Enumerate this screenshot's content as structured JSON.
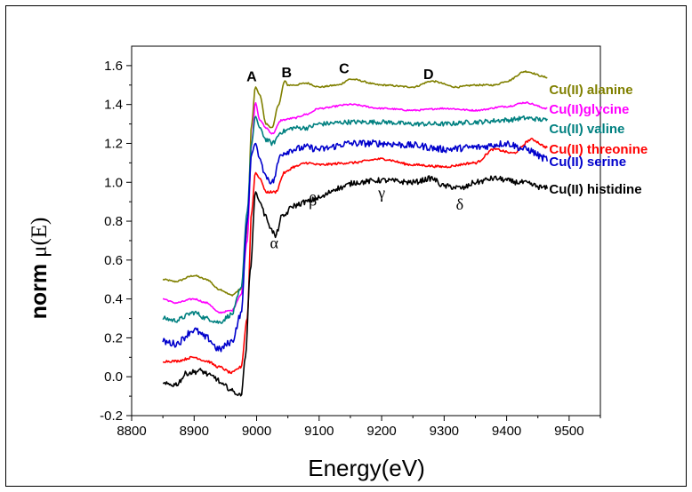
{
  "chart_data": {
    "type": "line",
    "xlabel": "Energy(eV)",
    "ylabel": "norm μ(E)",
    "xlim": [
      8800,
      9550
    ],
    "ylim": [
      -0.2,
      1.7
    ],
    "x_ticks": [
      "8800",
      "8900",
      "9000",
      "9100",
      "9200",
      "9300",
      "9400",
      "9500"
    ],
    "y_ticks": [
      "-0.2",
      "0.0",
      "0.2",
      "0.4",
      "0.6",
      "0.8",
      "1.0",
      "1.2",
      "1.4",
      "1.6"
    ],
    "grid": false,
    "legend": "inline labels at right end of each curve",
    "peak_labels": [
      {
        "text": "A",
        "x": 8992,
        "y": 1.52
      },
      {
        "text": "B",
        "x": 9048,
        "y": 1.54
      },
      {
        "text": "C",
        "x": 9140,
        "y": 1.56
      },
      {
        "text": "D",
        "x": 9275,
        "y": 1.53
      }
    ],
    "greek_labels": [
      {
        "text": "α",
        "x": 9028,
        "y": 0.66
      },
      {
        "text": "β",
        "x": 9090,
        "y": 0.88
      },
      {
        "text": "γ",
        "x": 9200,
        "y": 0.92
      },
      {
        "text": "δ",
        "x": 9325,
        "y": 0.86
      }
    ],
    "series": [
      {
        "name": "Cu(II) alanine",
        "color": "#808000",
        "noise": 0.004,
        "x": [
          8850,
          8870,
          8900,
          8920,
          8940,
          8960,
          8975,
          8985,
          8992,
          8998,
          9005,
          9015,
          9025,
          9035,
          9045,
          9050,
          9060,
          9080,
          9100,
          9130,
          9150,
          9200,
          9250,
          9280,
          9320,
          9350,
          9380,
          9400,
          9430,
          9465
        ],
        "y": [
          0.5,
          0.49,
          0.52,
          0.5,
          0.45,
          0.42,
          0.45,
          0.75,
          1.3,
          1.49,
          1.45,
          1.3,
          1.28,
          1.4,
          1.52,
          1.5,
          1.5,
          1.51,
          1.49,
          1.5,
          1.53,
          1.5,
          1.49,
          1.52,
          1.49,
          1.5,
          1.5,
          1.52,
          1.57,
          1.54
        ]
      },
      {
        "name": "Cu(II)glycine",
        "color": "#ff00ff",
        "noise": 0.004,
        "x": [
          8850,
          8870,
          8900,
          8920,
          8940,
          8960,
          8975,
          8985,
          8992,
          8998,
          9005,
          9015,
          9025,
          9040,
          9060,
          9080,
          9100,
          9150,
          9200,
          9250,
          9300,
          9350,
          9400,
          9430,
          9465
        ],
        "y": [
          0.4,
          0.38,
          0.4,
          0.38,
          0.33,
          0.34,
          0.42,
          0.7,
          1.2,
          1.41,
          1.32,
          1.28,
          1.25,
          1.32,
          1.33,
          1.35,
          1.38,
          1.4,
          1.38,
          1.37,
          1.38,
          1.37,
          1.39,
          1.41,
          1.38
        ]
      },
      {
        "name": "Cu(II) valine",
        "color": "#008080",
        "noise": 0.012,
        "x": [
          8850,
          8870,
          8900,
          8920,
          8940,
          8960,
          8975,
          8985,
          8992,
          8998,
          9005,
          9015,
          9025,
          9040,
          9060,
          9080,
          9100,
          9150,
          9200,
          9250,
          9300,
          9350,
          9400,
          9430,
          9465
        ],
        "y": [
          0.3,
          0.29,
          0.33,
          0.3,
          0.28,
          0.32,
          0.45,
          0.85,
          1.2,
          1.34,
          1.28,
          1.22,
          1.2,
          1.26,
          1.28,
          1.28,
          1.3,
          1.31,
          1.31,
          1.3,
          1.3,
          1.31,
          1.32,
          1.33,
          1.32
        ]
      },
      {
        "name": "Cu(II) threonine",
        "color": "#ff0000",
        "noise": 0.006,
        "x": [
          8850,
          8870,
          8900,
          8920,
          8940,
          8960,
          8975,
          8985,
          8992,
          8998,
          9005,
          9015,
          9030,
          9045,
          9060,
          9080,
          9100,
          9150,
          9200,
          9250,
          9300,
          9350,
          9380,
          9410,
          9440,
          9465
        ],
        "y": [
          0.08,
          0.08,
          0.1,
          0.08,
          0.05,
          0.02,
          0.05,
          0.3,
          0.85,
          1.05,
          1.02,
          0.95,
          0.95,
          1.05,
          1.08,
          1.1,
          1.09,
          1.1,
          1.12,
          1.09,
          1.08,
          1.1,
          1.17,
          1.15,
          1.22,
          1.18
        ]
      },
      {
        "name": "Cu(II) serine",
        "color": "#0000cc",
        "noise": 0.018,
        "x": [
          8850,
          8870,
          8900,
          8920,
          8940,
          8960,
          8975,
          8985,
          8992,
          8998,
          9005,
          9015,
          9025,
          9040,
          9060,
          9080,
          9100,
          9150,
          9200,
          9250,
          9300,
          9350,
          9400,
          9430,
          9465
        ],
        "y": [
          0.18,
          0.17,
          0.24,
          0.2,
          0.14,
          0.18,
          0.32,
          0.8,
          1.15,
          1.2,
          1.12,
          1.03,
          1.0,
          1.15,
          1.17,
          1.18,
          1.17,
          1.2,
          1.2,
          1.19,
          1.17,
          1.18,
          1.2,
          1.17,
          1.12
        ]
      },
      {
        "name": "Cu(II) histidine",
        "color": "#000000",
        "noise": 0.014,
        "x": [
          8850,
          8870,
          8890,
          8910,
          8930,
          8950,
          8965,
          8975,
          8982,
          8990,
          8998,
          9005,
          9015,
          9025,
          9030,
          9040,
          9060,
          9080,
          9100,
          9130,
          9160,
          9200,
          9250,
          9280,
          9300,
          9330,
          9350,
          9380,
          9420,
          9465
        ],
        "y": [
          -0.04,
          -0.04,
          0.02,
          0.03,
          0.0,
          -0.05,
          -0.08,
          -0.1,
          0.1,
          0.55,
          0.95,
          0.9,
          0.82,
          0.75,
          0.72,
          0.82,
          0.88,
          0.9,
          0.92,
          0.97,
          1.0,
          1.01,
          1.0,
          1.02,
          0.98,
          0.97,
          1.0,
          1.02,
          1.0,
          0.97
        ]
      }
    ],
    "series_labels": [
      {
        "series": 0,
        "label_y": 1.48
      },
      {
        "series": 1,
        "label_y": 1.38
      },
      {
        "series": 2,
        "label_y": 1.28
      },
      {
        "series": 3,
        "label_y": 1.175
      },
      {
        "series": 4,
        "label_y": 1.11
      },
      {
        "series": 5,
        "label_y": 0.97
      }
    ]
  }
}
